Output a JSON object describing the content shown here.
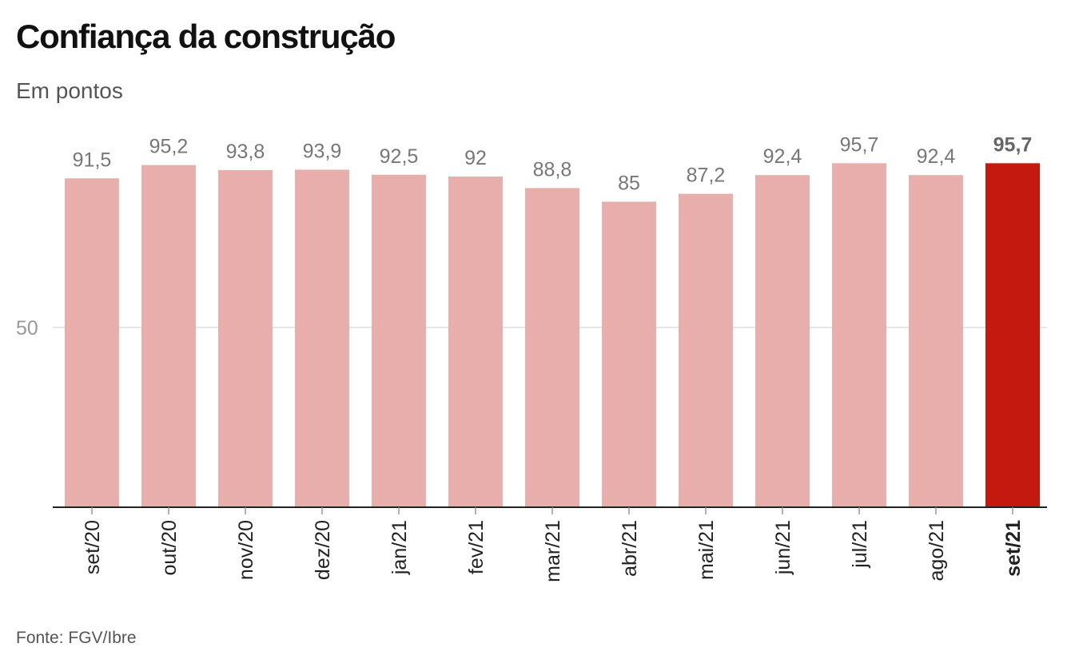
{
  "title": "Confiança da construção",
  "subtitle": "Em pontos",
  "source": "Fonte: FGV/Ibre",
  "chart_data": {
    "type": "bar",
    "categories": [
      "set/20",
      "out/20",
      "nov/20",
      "dez/20",
      "jan/21",
      "fev/21",
      "mar/21",
      "abr/21",
      "mai/21",
      "jun/21",
      "jul/21",
      "ago/21",
      "set/21"
    ],
    "values": [
      91.5,
      95.2,
      93.8,
      93.9,
      92.5,
      92,
      88.8,
      85,
      87.2,
      92.4,
      95.7,
      92.4,
      95.7
    ],
    "value_labels": [
      "91,5",
      "95,2",
      "93,8",
      "93,9",
      "92,5",
      "92",
      "88,8",
      "85",
      "87,2",
      "92,4",
      "95,7",
      "92,4",
      "95,7"
    ],
    "highlight_index": 12,
    "yticks": [
      50
    ],
    "ytick_labels": [
      "50"
    ],
    "ylim": [
      0,
      100
    ],
    "grid": true,
    "colors": {
      "bar": "#e8aeab",
      "highlight": "#c4190e",
      "value_label": "#777777",
      "highlight_label": "#666666",
      "tick_label": "#222222",
      "gridline": "#dddddd",
      "axis_tick": "#999999",
      "baseline": "#222222"
    }
  }
}
